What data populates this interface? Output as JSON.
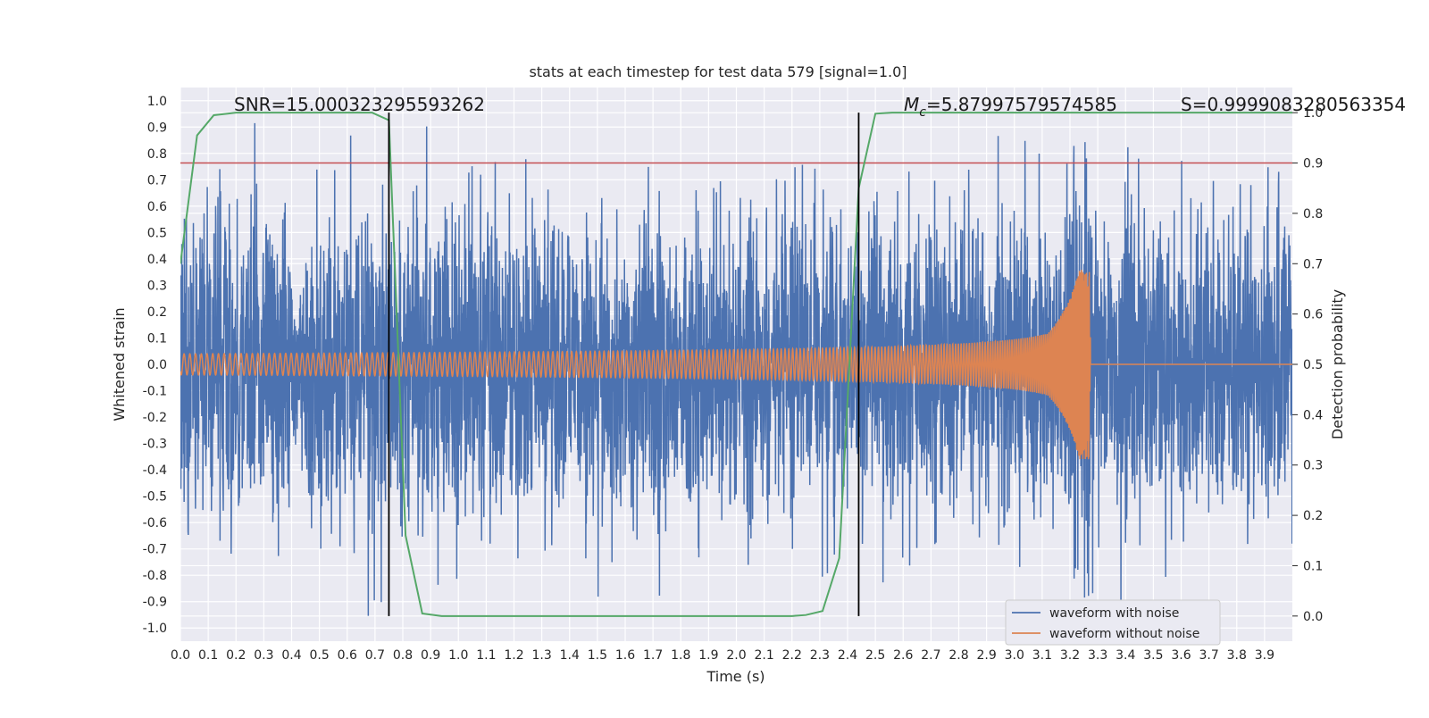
{
  "chart_data": {
    "type": "line",
    "title": "stats at each timestep for test data 579 [signal=1.0]",
    "xlabel": "Time (s)",
    "ylabel_left": "Whitened strain",
    "ylabel_right": "Detection probability",
    "xlim": [
      0.0,
      4.0
    ],
    "ylim_left": [
      -1.05,
      1.05
    ],
    "ylim_right": [
      -0.05,
      1.05
    ],
    "x_ticks": [
      "0.0",
      "0.1",
      "0.2",
      "0.3",
      "0.4",
      "0.5",
      "0.6",
      "0.7",
      "0.8",
      "0.9",
      "1.0",
      "1.1",
      "1.2",
      "1.3",
      "1.4",
      "1.5",
      "1.6",
      "1.7",
      "1.8",
      "1.9",
      "2.0",
      "2.1",
      "2.2",
      "2.3",
      "2.4",
      "2.5",
      "2.6",
      "2.7",
      "2.8",
      "2.9",
      "3.0",
      "3.1",
      "3.2",
      "3.3",
      "3.4",
      "3.5",
      "3.6",
      "3.7",
      "3.8",
      "3.9"
    ],
    "y_ticks_left": [
      "1.0",
      "0.9",
      "0.8",
      "0.7",
      "0.6",
      "0.5",
      "0.4",
      "0.3",
      "0.2",
      "0.1",
      "0.0",
      "-0.1",
      "-0.2",
      "-0.3",
      "-0.4",
      "-0.5",
      "-0.6",
      "-0.7",
      "-0.8",
      "-0.9",
      "-1.0"
    ],
    "y_ticks_right": [
      "1.0",
      "0.9",
      "0.8",
      "0.7",
      "0.6",
      "0.5",
      "0.4",
      "0.3",
      "0.2",
      "0.1",
      "0.0"
    ],
    "annotations": {
      "snr": "SNR=15.000323295593262",
      "mc_symbol": "M",
      "mc_sub": "c",
      "mc_value": "=5.87997579574585",
      "s": "S=0.9999083280563354"
    },
    "threshold_line": {
      "y_right": 0.9,
      "color": "#c44e52"
    },
    "vertical_lines": [
      0.75,
      2.44
    ],
    "merger_time": 3.27,
    "series": [
      {
        "name": "waveform with noise",
        "color": "#4c72b0",
        "noise_std": 0.28,
        "peak_abs": 0.98
      },
      {
        "name": "waveform without noise",
        "color": "#dd8452",
        "start_amplitude": 0.04,
        "peak_amplitude": 0.36,
        "peak_time": 3.27
      },
      {
        "name": "detection probability",
        "color": "#55a868",
        "axis": "right",
        "x": [
          0.0,
          0.06,
          0.12,
          0.2,
          0.3,
          0.4,
          0.5,
          0.6,
          0.69,
          0.75,
          0.81,
          0.87,
          0.94,
          1.0,
          1.2,
          1.4,
          1.6,
          1.8,
          2.0,
          2.2,
          2.25,
          2.31,
          2.37,
          2.44,
          2.5,
          2.56,
          2.7,
          3.0,
          3.3,
          3.6,
          3.9,
          4.0
        ],
        "y": [
          0.7,
          0.955,
          0.995,
          1.0,
          1.0,
          1.0,
          1.0,
          1.0,
          1.0,
          0.985,
          0.16,
          0.005,
          0.0,
          0.0,
          0.0,
          0.0,
          0.0,
          0.0,
          0.0,
          0.0,
          0.002,
          0.01,
          0.115,
          0.85,
          0.998,
          1.0,
          1.0,
          1.0,
          1.0,
          1.0,
          1.0,
          1.0
        ]
      }
    ],
    "legend_position": "lower-right",
    "grid": true
  }
}
